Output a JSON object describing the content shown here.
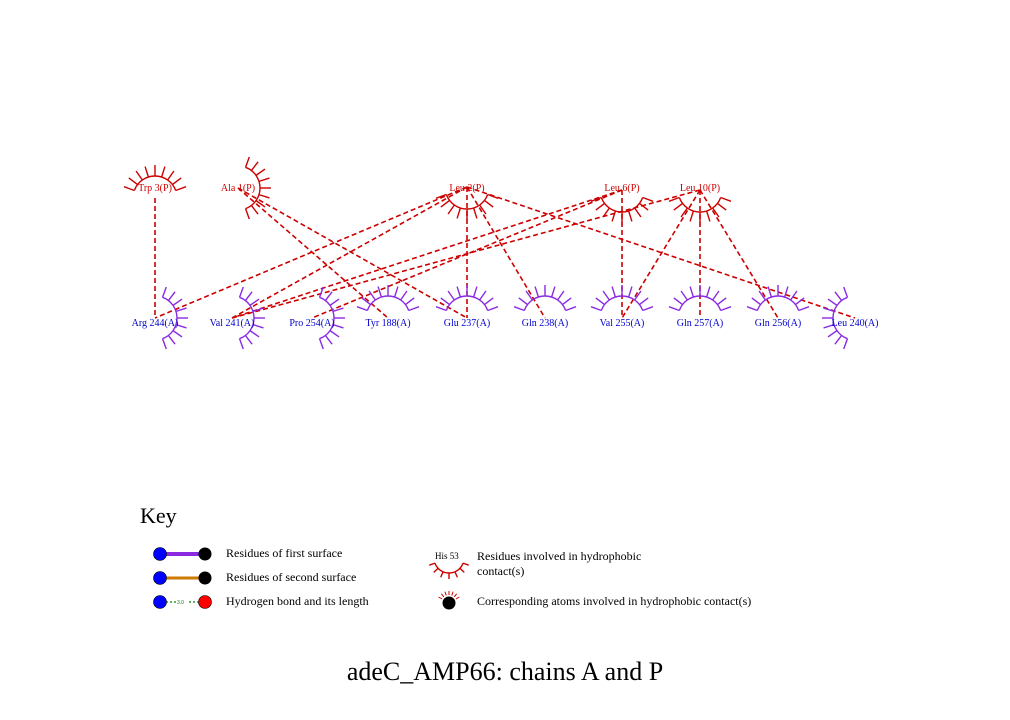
{
  "colors": {
    "chain_p": "#cc0000",
    "chain_a": "#8a2be2",
    "chain_a_label": "#0000cc",
    "contact_line": "#cc0000",
    "bond_first": "#8a2be2",
    "bond_second": "#cc7a00",
    "hbond": "#008800",
    "atom_blue": "#0000ff",
    "atom_red": "#ff0000",
    "atom_black": "#000000"
  },
  "residues_p": [
    {
      "id": "trp3",
      "label": "Trp 3(P)",
      "arc_orientation": "up"
    },
    {
      "id": "ala1",
      "label": "Ala 1(P)",
      "arc_orientation": "right"
    },
    {
      "id": "leu2",
      "label": "Leu 2(P)",
      "arc_orientation": "down"
    },
    {
      "id": "leu6",
      "label": "Leu 6(P)",
      "arc_orientation": "down"
    },
    {
      "id": "leu10",
      "label": "Leu 10(P)",
      "arc_orientation": "down"
    }
  ],
  "residues_a": [
    {
      "id": "arg244",
      "label": "Arg 244(A)",
      "arc_orientation": "right"
    },
    {
      "id": "val241",
      "label": "Val 241(A)",
      "arc_orientation": "right"
    },
    {
      "id": "pro254",
      "label": "Pro 254(A)",
      "arc_orientation": "right"
    },
    {
      "id": "tyr188",
      "label": "Tyr 188(A)",
      "arc_orientation": "up"
    },
    {
      "id": "glu237",
      "label": "Glu 237(A)",
      "arc_orientation": "up"
    },
    {
      "id": "gln238",
      "label": "Gln 238(A)",
      "arc_orientation": "up"
    },
    {
      "id": "val255",
      "label": "Val 255(A)",
      "arc_orientation": "up"
    },
    {
      "id": "gln257",
      "label": "Gln 257(A)",
      "arc_orientation": "up"
    },
    {
      "id": "gln256",
      "label": "Gln 256(A)",
      "arc_orientation": "up"
    },
    {
      "id": "leu240",
      "label": "Leu 240(A)",
      "arc_orientation": "left"
    }
  ],
  "contacts": [
    [
      "trp3",
      "arg244"
    ],
    [
      "ala1",
      "tyr188"
    ],
    [
      "ala1",
      "glu237"
    ],
    [
      "leu2",
      "val241"
    ],
    [
      "leu2",
      "arg244"
    ],
    [
      "leu2",
      "glu237"
    ],
    [
      "leu2",
      "gln238"
    ],
    [
      "leu2",
      "leu240"
    ],
    [
      "leu6",
      "val241"
    ],
    [
      "leu6",
      "pro254"
    ],
    [
      "leu6",
      "val255"
    ],
    [
      "leu10",
      "val241"
    ],
    [
      "leu10",
      "val255"
    ],
    [
      "leu10",
      "gln257"
    ],
    [
      "leu10",
      "gln256"
    ]
  ],
  "key": {
    "title": "Key",
    "first_surface": "Residues of first surface",
    "second_surface": "Residues of second surface",
    "hbond": "Hydrogen bond and its length",
    "hbond_length": "3.0",
    "hydrophobic_example_label": "His 53",
    "hydrophobic_line1": "Residues involved in hydrophobic",
    "hydrophobic_line2": "contact(s)",
    "atoms": "Corresponding atoms involved in hydrophobic contact(s)"
  },
  "caption": "adeC_AMP66: chains A and P"
}
